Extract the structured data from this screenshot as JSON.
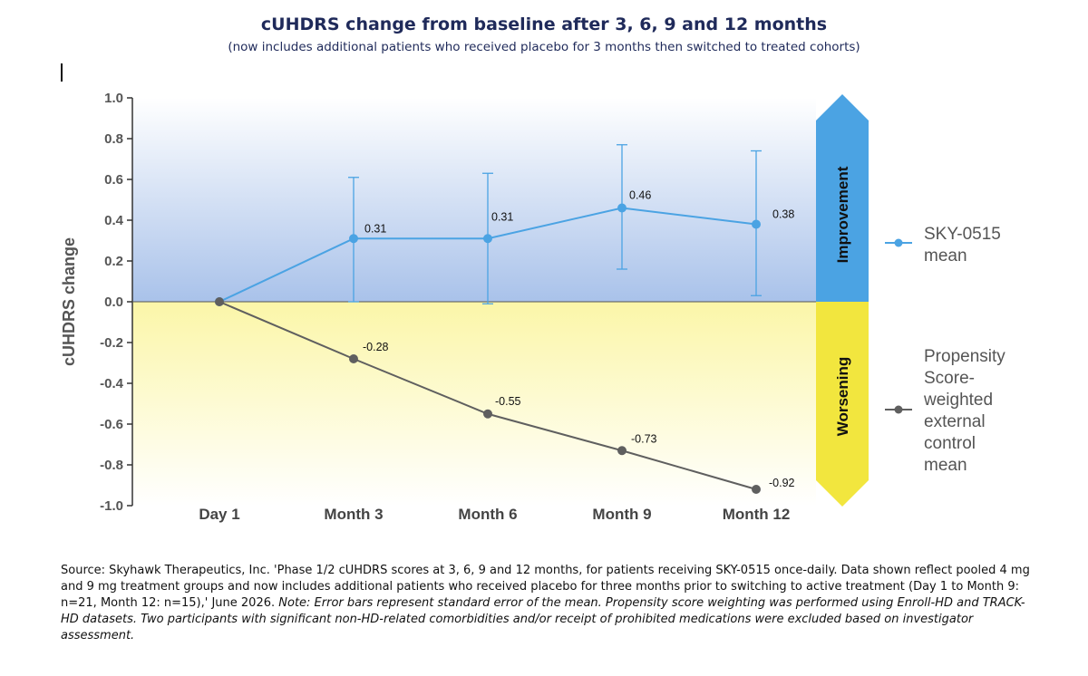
{
  "chart_data": {
    "type": "line",
    "title": "cUHDRS change from baseline after 3, 6, 9 and 12 months",
    "subtitle": "(now includes additional patients who received placebo for 3 months then switched to treated cohorts)",
    "ylabel": "cUHDRS change",
    "xlabel": "",
    "ylim": [
      -1.0,
      1.0
    ],
    "yticks": [
      "1.0",
      "0.8",
      "0.6",
      "0.4",
      "0.2",
      "0.0",
      "-0.2",
      "-0.4",
      "-0.6",
      "-0.8",
      "-1.0"
    ],
    "categories": [
      "Day 1",
      "Month 3",
      "Month 6",
      "Month 9",
      "Month 12"
    ],
    "series": [
      {
        "name": "SKY-0515 mean",
        "color": "#4ba3e3",
        "values": [
          0.0,
          0.31,
          0.31,
          0.46,
          0.38
        ],
        "labels": [
          "",
          "0.31",
          "0.31",
          "0.46",
          "0.38"
        ],
        "error_high": [
          0.0,
          0.61,
          0.63,
          0.77,
          0.74
        ],
        "error_low": [
          0.0,
          0.0,
          -0.01,
          0.16,
          0.03
        ]
      },
      {
        "name": "Propensity Score-weighted external control mean",
        "color": "#5f5f5f",
        "values": [
          0.0,
          -0.28,
          -0.55,
          -0.73,
          -0.92
        ],
        "labels": [
          "",
          "-0.28",
          "-0.55",
          "-0.73",
          "-0.92"
        ]
      }
    ],
    "legend_placement": "right",
    "legend_lines": [
      [
        "SKY-0515",
        "mean"
      ],
      [
        "Propensity",
        "Score-",
        "weighted",
        "external",
        "control",
        "mean"
      ]
    ],
    "bands": {
      "improvement_label": "Improvement",
      "worsening_label": "Worsening",
      "improvement_color": "#4ba3e3",
      "worsening_color": "#f2e63e"
    },
    "grid": false
  },
  "footnote": {
    "source": "Source: Skyhawk Therapeutics, Inc. 'Phase 1/2 cUHDRS scores at 3, 6, 9 and 12 months, for patients receiving SKY-0515 once-daily. Data shown reflect pooled 4 mg and 9 mg treatment groups and now includes additional patients who received placebo for three months prior to switching to active treatment (Day 1 to Month 9: n=21, Month 12: n=15),' June 2026.",
    "note": "Note: Error bars represent standard error of the mean. Propensity score weighting was performed using Enroll-HD and TRACK-HD datasets. Two participants with significant non-HD-related comorbidities and/or receipt of prohibited medications were excluded based on investigator assessment."
  }
}
